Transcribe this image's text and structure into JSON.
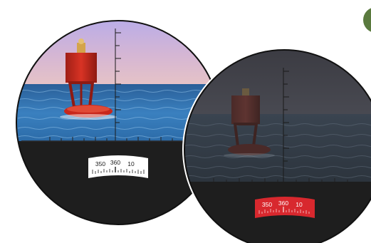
{
  "views": {
    "day": {
      "compass_labels": [
        "350",
        "360",
        "10"
      ],
      "scale_color": "#ffffff",
      "text_color": "#1a1a1a"
    },
    "night": {
      "compass_labels": [
        "350",
        "360",
        "10"
      ],
      "scale_color": "#d8282e",
      "text_color": "#ffffff"
    }
  },
  "colors": {
    "green_badge": "#5a7a3e",
    "sky_day_top": "#b9aee6",
    "sea_day": "#2f6fa8",
    "buoy_red": "#c8281c",
    "lower_band": "#1e1e1e"
  },
  "icons": [
    "reticle-icon",
    "compass-scale-icon",
    "buoy-image"
  ]
}
